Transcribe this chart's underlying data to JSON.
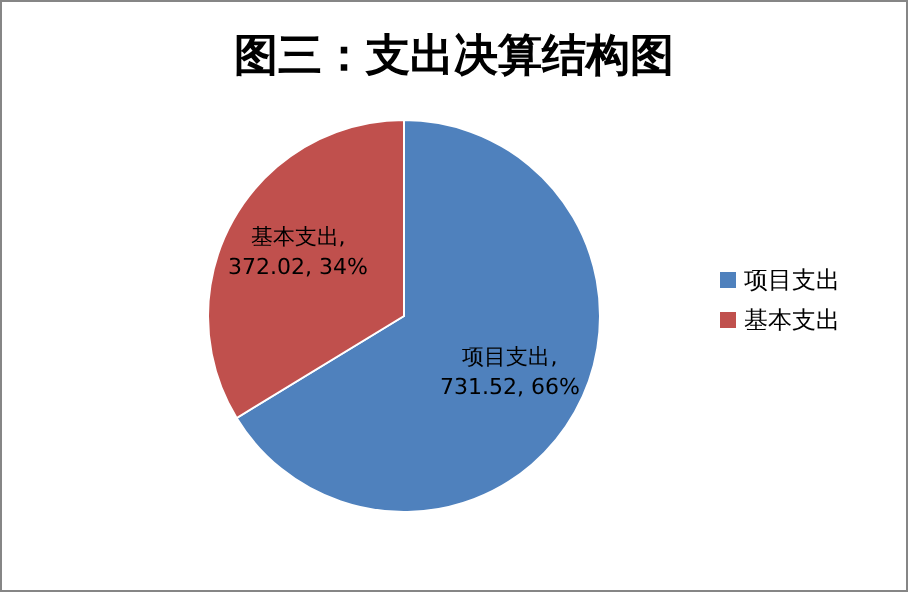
{
  "chart_data": {
    "type": "pie",
    "title": "图三：支出决算结构图",
    "categories": [
      "项目支出",
      "基本支出"
    ],
    "values": [
      731.52,
      372.02
    ],
    "colors": [
      "#4f81bd",
      "#c0504d"
    ],
    "value_labels": [
      "项目支出, 731.52, 66%",
      "基本支出, 372.02, 34%"
    ],
    "legend": "right"
  }
}
